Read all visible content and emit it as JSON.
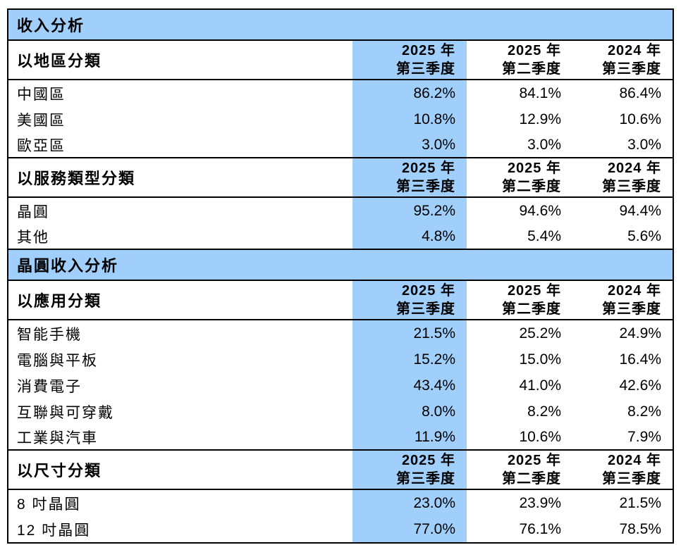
{
  "colors": {
    "highlight": "#9FCFFA",
    "border": "#000000",
    "text": "#000000",
    "background": "#FFFFFF"
  },
  "bands": [
    {
      "title": "收入分析"
    },
    {
      "title": "晶圓收入分析"
    }
  ],
  "period_headers": [
    {
      "year": "2025 年",
      "quarter": "第三季度",
      "highlighted": true
    },
    {
      "year": "2025 年",
      "quarter": "第二季度",
      "highlighted": false
    },
    {
      "year": "2024 年",
      "quarter": "第三季度",
      "highlighted": false
    }
  ],
  "tables": [
    {
      "category": "以地區分類",
      "rows": [
        {
          "label": "中國區",
          "values": [
            "86.2%",
            "84.1%",
            "86.4%"
          ]
        },
        {
          "label": "美國區",
          "values": [
            "10.8%",
            "12.9%",
            "10.6%"
          ]
        },
        {
          "label": "歐亞區",
          "values": [
            "3.0%",
            "3.0%",
            "3.0%"
          ]
        }
      ]
    },
    {
      "category": "以服務類型分類",
      "rows": [
        {
          "label": "晶圓",
          "values": [
            "95.2%",
            "94.6%",
            "94.4%"
          ]
        },
        {
          "label": "其他",
          "values": [
            "4.8%",
            "5.4%",
            "5.6%"
          ]
        }
      ]
    },
    {
      "category": "以應用分類",
      "rows": [
        {
          "label": "智能手機",
          "values": [
            "21.5%",
            "25.2%",
            "24.9%"
          ]
        },
        {
          "label": "電腦與平板",
          "values": [
            "15.2%",
            "15.0%",
            "16.4%"
          ]
        },
        {
          "label": "消費電子",
          "values": [
            "43.4%",
            "41.0%",
            "42.6%"
          ]
        },
        {
          "label": "互聯與可穿戴",
          "values": [
            "8.0%",
            "8.2%",
            "8.2%"
          ]
        },
        {
          "label": "工業與汽車",
          "values": [
            "11.9%",
            "10.6%",
            "7.9%"
          ]
        }
      ]
    },
    {
      "category": "以尺寸分類",
      "rows": [
        {
          "label": "8 吋晶圓",
          "values": [
            "23.0%",
            "23.9%",
            "21.5%"
          ]
        },
        {
          "label": "12 吋晶圓",
          "values": [
            "77.0%",
            "76.1%",
            "78.5%"
          ]
        }
      ]
    }
  ]
}
